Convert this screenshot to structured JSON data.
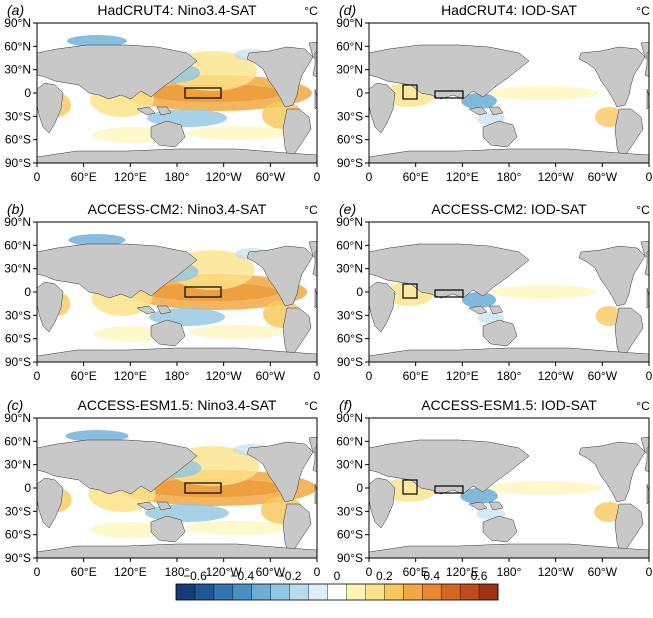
{
  "figure": {
    "panels": [
      {
        "letter": "(a)",
        "title": "HadCRUT4: Nino3.4-SAT",
        "unit": "°C",
        "index": "nino"
      },
      {
        "letter": "(b)",
        "title": "ACCESS-CM2: Nino3.4-SAT",
        "unit": "°C",
        "index": "nino"
      },
      {
        "letter": "(c)",
        "title": "ACCESS-ESM1.5: Nino3.4-SAT",
        "unit": "°C",
        "index": "nino"
      },
      {
        "letter": "(d)",
        "title": "HadCRUT4: IOD-SAT",
        "unit": "°C",
        "index": "iod"
      },
      {
        "letter": "(e)",
        "title": "ACCESS-CM2: IOD-SAT",
        "unit": "°C",
        "index": "iod"
      },
      {
        "letter": "(f)",
        "title": "ACCESS-ESM1.5: IOD-SAT",
        "unit": "°C",
        "index": "iod"
      }
    ],
    "lat_ticks": [
      "90°N",
      "60°N",
      "30°N",
      "0",
      "30°S",
      "60°S",
      "90°S"
    ],
    "lon_ticks": [
      "0",
      "60°E",
      "120°E",
      "180°",
      "120°W",
      "60°W",
      "0"
    ],
    "colorbar": {
      "labels": [
        "−0.6",
        "−0.4",
        "−0.2",
        "0",
        "0.2",
        "0.4",
        "0.6"
      ],
      "colors": [
        "#163d78",
        "#1f5796",
        "#2f73b0",
        "#4a90c4",
        "#6aaed4",
        "#90c6e0",
        "#b8dcec",
        "#dceff6",
        "#ffffff",
        "#fdf5b8",
        "#fbe38a",
        "#f7c85e",
        "#f2a843",
        "#e68732",
        "#d66626",
        "#bf4a1c",
        "#a03314"
      ]
    },
    "land_color": "#c8c8c8",
    "warm_color": "#f3b445",
    "cool_color": "#5da6d2"
  }
}
